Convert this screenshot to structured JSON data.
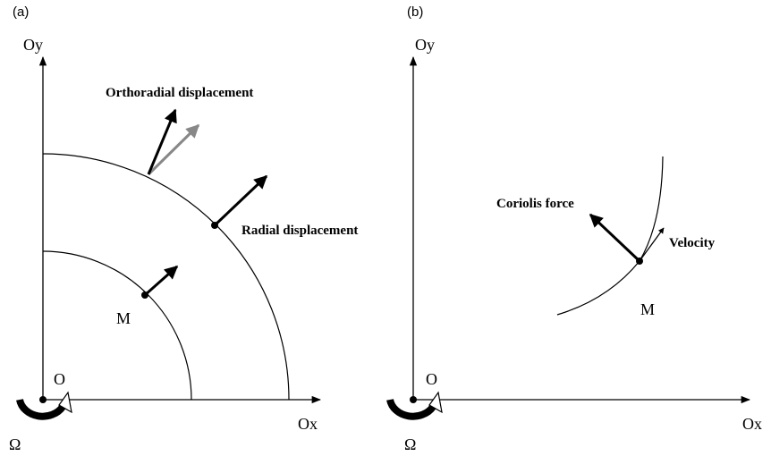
{
  "panels": [
    {
      "tag": "(a)",
      "y_axis": "Oy",
      "x_axis": "Ox",
      "origin": "O",
      "rotation": "Ω",
      "point": "M",
      "labels": [
        "Orthoradial displacement",
        "Radial displacement"
      ]
    },
    {
      "tag": "(b)",
      "y_axis": "Oy",
      "x_axis": "Ox",
      "origin": "O",
      "rotation": "Ω",
      "point": "M",
      "labels": [
        "Coriolis force",
        "Velocity"
      ]
    }
  ]
}
